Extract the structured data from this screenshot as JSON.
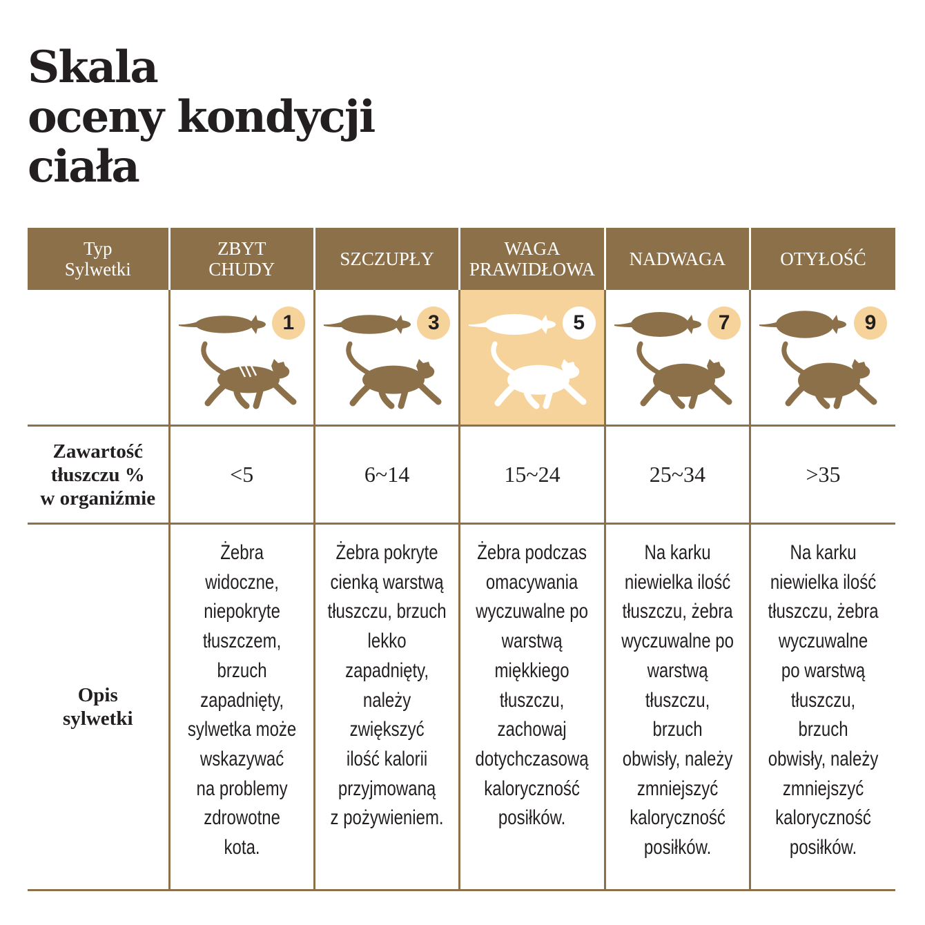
{
  "title": [
    "Skala",
    "oceny kondycji",
    "ciała"
  ],
  "colors": {
    "brand": "#8c7049",
    "highlight": "#f7d39c",
    "badge": "#f6d39a",
    "text": "#231f20"
  },
  "header": {
    "row_label": "Typ\nSylwetki",
    "columns": [
      {
        "label": "ZBYT\nCHUDY",
        "score": "1",
        "fat": "<5",
        "description": "Żebra\nwidoczne,\nniepokryte\ntłuszczem,\nbrzuch\nzapadnięty,\nsylwetka może\nwskazywać\nna problemy\nzdrowotne\nkota."
      },
      {
        "label": "SZCZUPŁY",
        "score": "3",
        "fat": "6~14",
        "description": "Żebra pokryte\ncienką warstwą\ntłuszczu, brzuch\nlekko\nzapadnięty,\nnależy\nzwiększyć\nilość kalorii\nprzyjmowaną\nz pożywieniem."
      },
      {
        "label": "WAGA\nPRAWIDŁOWA",
        "score": "5",
        "fat": "15~24",
        "highlighted": true,
        "description": "Żebra podczas\nomacywania\nwyczuwalne po\nwarstwą\nmiękkiego\ntłuszczu,\nzachowaj\ndotychczasową\nkaloryczność\nposiłków."
      },
      {
        "label": "NADWAGA",
        "score": "7",
        "fat": "25~34",
        "description": "Na karku\nniewielka ilość\ntłuszczu, żebra\nwyczuwalne po\nwarstwą\ntłuszczu,\nbrzuch\nobwisły, należy\nzmniejszyć\nkaloryczność\nposiłków."
      },
      {
        "label": "OTYŁOŚĆ",
        "score": "9",
        "fat": ">35",
        "description": "Na karku\nniewielka ilość\ntłuszczu, żebra\nwyczuwalne\npo warstwą\ntłuszczu,\nbrzuch\nobwisły, należy\nzmniejszyć\nkaloryczność\nposiłków."
      }
    ]
  },
  "rows": {
    "fat_label": "Zawartość\ntłuszczu %\nw organiźmie",
    "description_label": "Opis\nsylwetki"
  },
  "icons": {
    "top_view": "cat-top-view-silhouette-icon",
    "side_view": "cat-side-view-silhouette-icon"
  }
}
